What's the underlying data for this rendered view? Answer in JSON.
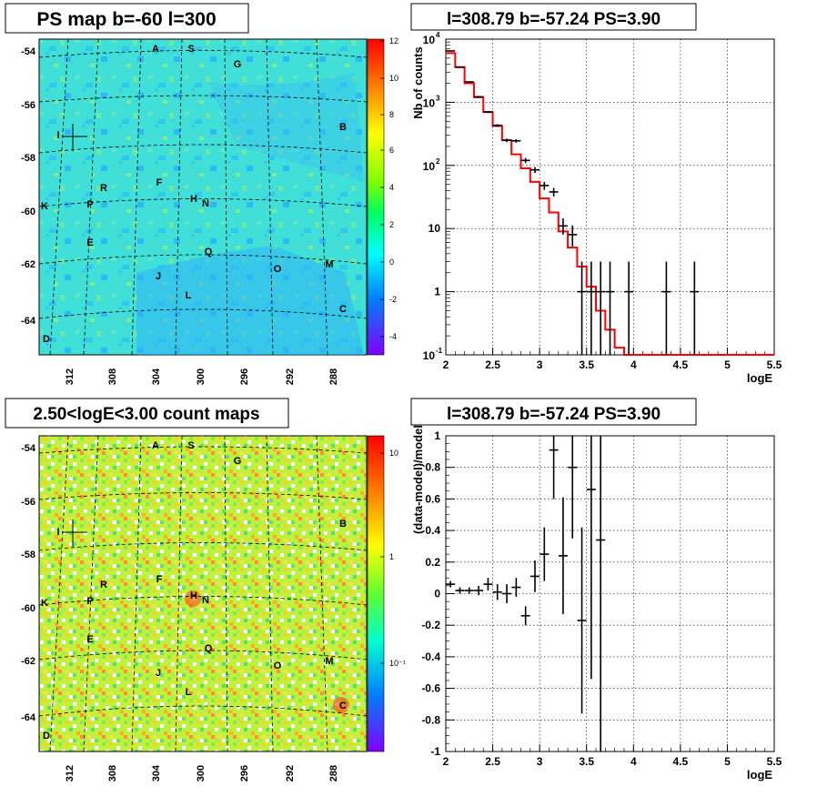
{
  "panels": {
    "map_top": {
      "title": "PS map b=-60 l=300",
      "y_ticks": [
        "-54",
        "-56",
        "-58",
        "-60",
        "-62",
        "-64"
      ],
      "x_ticks": [
        "312",
        "308",
        "304",
        "300",
        "296",
        "292",
        "288"
      ],
      "colorbar_ticks": [
        "12",
        "10",
        "8",
        "6",
        "4",
        "2",
        "0",
        "-2",
        "-4"
      ],
      "letters": [
        "A",
        "S",
        "G",
        "B",
        "I",
        "R",
        "F",
        "H",
        "N",
        "K",
        "P",
        "E",
        "Q",
        "O",
        "M",
        "J",
        "L",
        "C",
        "D"
      ]
    },
    "map_bottom": {
      "title": "2.50<logE<3.00 count maps",
      "y_ticks": [
        "-54",
        "-56",
        "-58",
        "-60",
        "-62",
        "-64"
      ],
      "x_ticks": [
        "312",
        "308",
        "304",
        "300",
        "296",
        "292",
        "288"
      ],
      "colorbar_ticks": [
        "10",
        "1",
        "10⁻¹"
      ],
      "letters": [
        "A",
        "S",
        "G",
        "B",
        "I",
        "R",
        "F",
        "H",
        "N",
        "K",
        "P",
        "E",
        "Q",
        "O",
        "M",
        "J",
        "L",
        "C",
        "D"
      ]
    }
  },
  "chart_data": [
    {
      "type": "line",
      "title": "l=308.79 b=-57.24 PS=3.90",
      "xlabel": "logE",
      "ylabel": "Nb of counts",
      "yscale": "log",
      "xlim": [
        2,
        5.5
      ],
      "ylim": [
        0.1,
        10000
      ],
      "x_ticks": [
        "2",
        "2.5",
        "3",
        "3.5",
        "4",
        "4.5",
        "5",
        "5.5"
      ],
      "y_ticks": [
        "10^-1",
        "1",
        "10",
        "10^2",
        "10^3",
        "10^4"
      ],
      "grid": true,
      "series": [
        {
          "style": "step",
          "color": "#ff0000",
          "bin_edges": [
            2.0,
            2.1,
            2.2,
            2.3,
            2.4,
            2.5,
            2.6,
            2.7,
            2.8,
            2.9,
            3.0,
            3.1,
            3.2,
            3.3,
            3.4,
            3.5,
            3.6,
            3.7,
            3.8,
            3.9,
            4.0,
            5.5
          ],
          "values": [
            6000,
            3600,
            2000,
            1200,
            700,
            420,
            250,
            150,
            90,
            55,
            30,
            18,
            9,
            5,
            2.5,
            1.2,
            0.5,
            0.25,
            0.13,
            0.1,
            0.1
          ]
        },
        {
          "style": "errorbar",
          "color": "#000000",
          "x": [
            2.05,
            2.15,
            2.25,
            2.35,
            2.45,
            2.55,
            2.65,
            2.75,
            2.85,
            2.95,
            3.05,
            3.15,
            3.25,
            3.35,
            3.45,
            3.55,
            3.65,
            3.75,
            3.95,
            4.35,
            4.65
          ],
          "y": [
            6500,
            3600,
            2100,
            1220,
            700,
            430,
            250,
            245,
            120,
            85,
            48,
            38,
            11,
            8,
            1,
            1,
            1,
            1,
            1,
            1,
            1
          ],
          "err_low": [
            80,
            60,
            46,
            35,
            26,
            21,
            16,
            16,
            11,
            9,
            7,
            6,
            3,
            2.8,
            0.9,
            0.9,
            0.9,
            0.9,
            0.9,
            0.9,
            0.9
          ],
          "err_high": [
            80,
            60,
            46,
            35,
            26,
            21,
            16,
            16,
            11,
            9,
            7,
            6,
            3.5,
            3.2,
            2,
            2,
            2,
            2,
            2,
            2,
            2
          ]
        }
      ]
    },
    {
      "type": "scatter",
      "title": "l=308.79 b=-57.24 PS=3.90",
      "xlabel": "logE",
      "ylabel": "(data-model)/model",
      "xlim": [
        2,
        5.5
      ],
      "ylim": [
        -1,
        1
      ],
      "x_ticks": [
        "2",
        "2.5",
        "3",
        "3.5",
        "4",
        "4.5",
        "5",
        "5.5"
      ],
      "y_ticks": [
        "-1",
        "-0.8",
        "-0.6",
        "-0.4",
        "-0.2",
        "0",
        "0.2",
        "0.4",
        "0.6",
        "0.8",
        "1"
      ],
      "grid": true,
      "series": [
        {
          "style": "errorbar",
          "color": "#000000",
          "x": [
            2.05,
            2.15,
            2.25,
            2.35,
            2.45,
            2.55,
            2.65,
            2.75,
            2.85,
            2.95,
            3.05,
            3.15,
            3.25,
            3.35,
            3.45,
            3.55,
            3.65
          ],
          "y": [
            0.06,
            0.02,
            0.02,
            0.02,
            0.06,
            0.01,
            0.0,
            0.04,
            -0.14,
            0.11,
            0.25,
            0.91,
            0.24,
            0.8,
            -0.17,
            0.66,
            0.34
          ],
          "err": [
            0.02,
            0.02,
            0.02,
            0.03,
            0.04,
            0.05,
            0.06,
            0.06,
            0.06,
            0.1,
            0.17,
            0.31,
            0.37,
            0.45,
            0.59,
            1.2,
            1.4
          ]
        }
      ]
    }
  ]
}
